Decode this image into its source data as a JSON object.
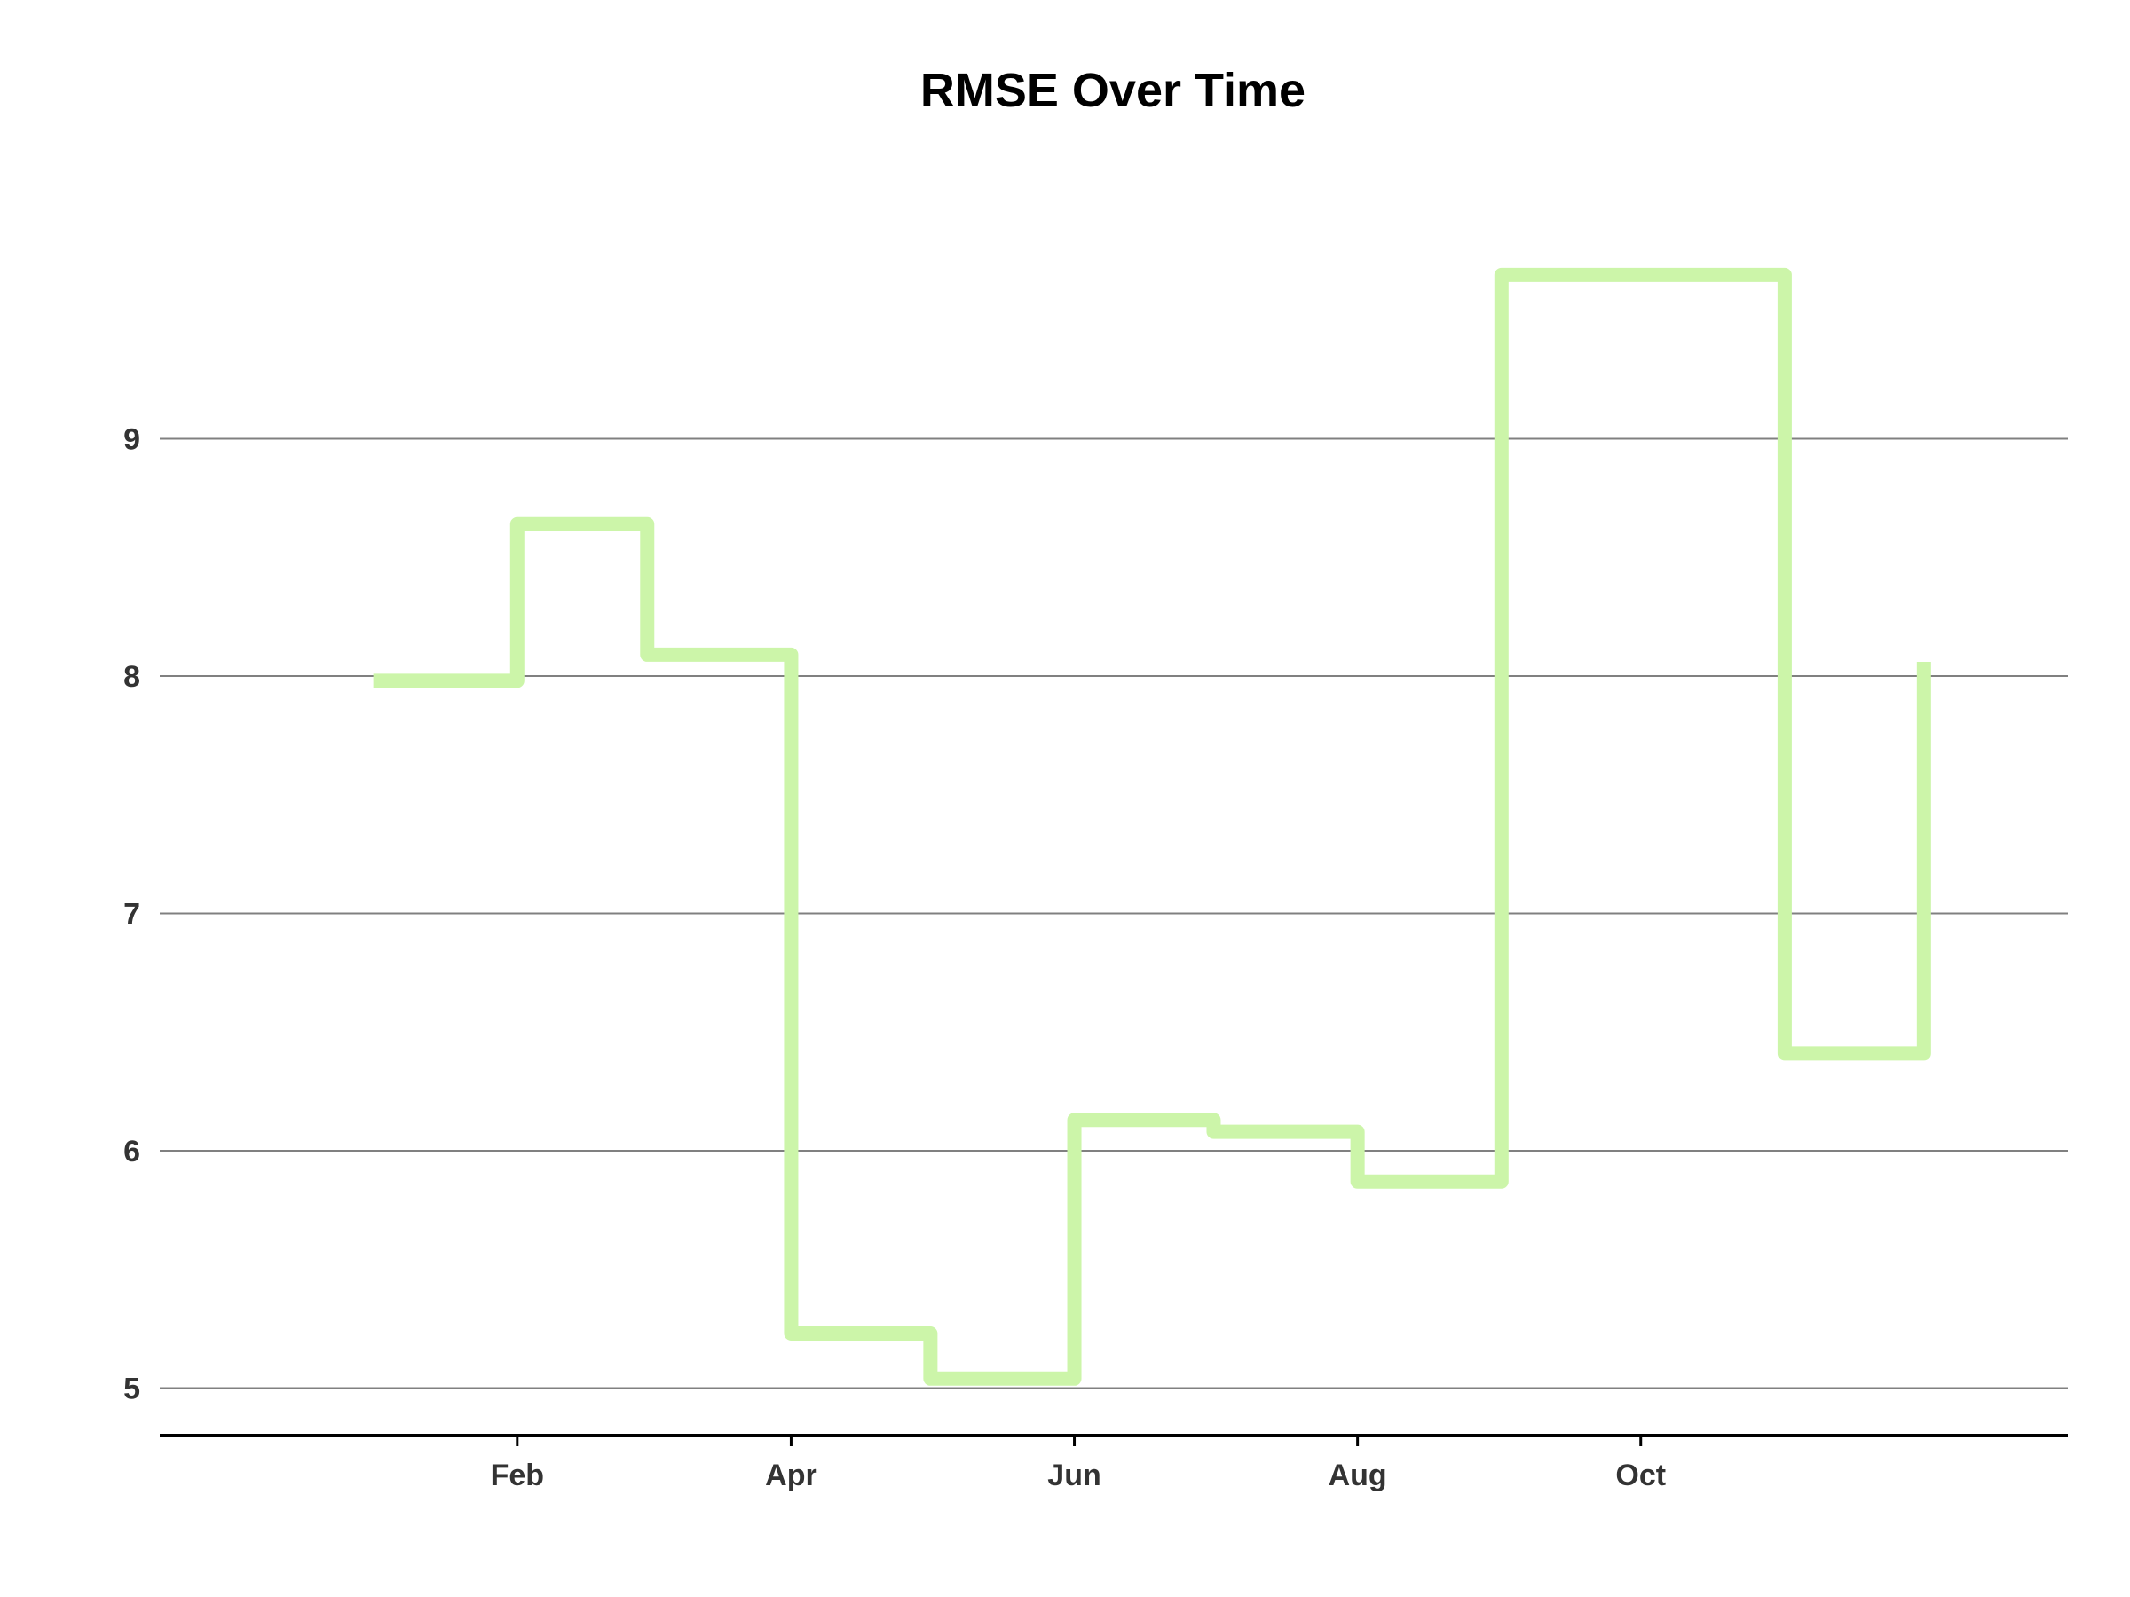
{
  "chart_data": {
    "type": "line",
    "step": "post",
    "title": "RMSE Over Time",
    "xlabel": "",
    "ylabel": "",
    "x": [
      "2023-01-01",
      "2023-02-01",
      "2023-03-01",
      "2023-04-01",
      "2023-05-01",
      "2023-06-01",
      "2023-07-01",
      "2023-08-01",
      "2023-09-01",
      "2023-10-01",
      "2023-11-01",
      "2023-12-01"
    ],
    "x_ticks": [
      {
        "date": "2023-02-01",
        "label": "Feb"
      },
      {
        "date": "2023-04-01",
        "label": "Apr"
      },
      {
        "date": "2023-06-01",
        "label": "Jun"
      },
      {
        "date": "2023-08-01",
        "label": "Aug"
      },
      {
        "date": "2023-10-01",
        "label": "Oct"
      }
    ],
    "xlim": [
      "2022-11-16",
      "2024-01-01"
    ],
    "y_ticks": [
      5,
      6,
      7,
      8,
      9
    ],
    "ylim": [
      4.8,
      10.4
    ],
    "grid": "horizontal",
    "series": [
      {
        "color": "#ccf5a9",
        "values": [
          7.98,
          8.64,
          8.09,
          5.23,
          5.04,
          6.13,
          6.08,
          5.87,
          9.69,
          9.69,
          6.41,
          8.06
        ]
      }
    ]
  }
}
